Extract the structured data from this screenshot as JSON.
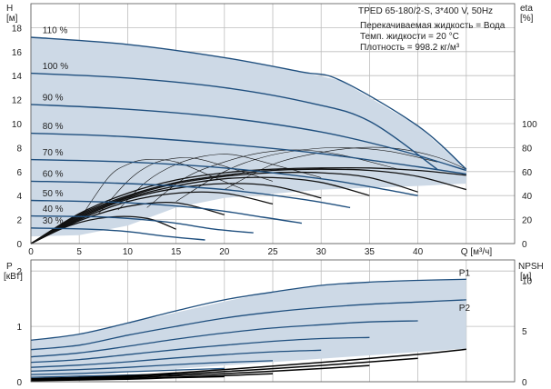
{
  "title": "TPED 65-180/2-S, 3*400 V, 50Hz",
  "info_lines": [
    "Перекачиваемая жидкость = Вода",
    "Темп. жидкости = 20 °C",
    "Плотность = 998.2 кг/м³"
  ],
  "colors": {
    "envelope": "#cdd9e6",
    "curve": "#1f4f7e",
    "grid": "#bdbdbd",
    "efficiency": "#111111",
    "npsh": "#000000"
  },
  "chart_data": [
    {
      "type": "line",
      "panel": "head",
      "ylabel_left": [
        "H",
        "[м]"
      ],
      "ylabel_right": [
        "eta",
        "[%]"
      ],
      "xlabel": "Q [м³/ч]",
      "xlim": [
        0,
        50
      ],
      "xticks": [
        0,
        5,
        10,
        15,
        20,
        25,
        30,
        35,
        40
      ],
      "ylim": [
        0,
        20
      ],
      "yticks": [
        0,
        2,
        4,
        6,
        8,
        10,
        12,
        14,
        16,
        18
      ],
      "eta_ticks": [
        0,
        20,
        40,
        60,
        80,
        100
      ],
      "eta_scale": "eta 0–100 % maps onto H 0–10 m",
      "speed_series": [
        {
          "name": "110 %",
          "x": [
            0,
            10,
            20,
            28,
            32,
            40,
            45
          ],
          "y": [
            17.2,
            16.6,
            15.5,
            14.3,
            13.6,
            9.8,
            6.2
          ]
        },
        {
          "name": "100 %",
          "x": [
            0,
            10,
            20,
            29,
            35,
            42
          ],
          "y": [
            14.2,
            13.8,
            13.0,
            11.7,
            10.2,
            6.2
          ]
        },
        {
          "name": "90 %",
          "x": [
            0,
            10,
            20,
            30,
            38,
            45
          ],
          "y": [
            11.6,
            11.2,
            10.5,
            9.3,
            7.8,
            6.1
          ]
        },
        {
          "name": "80 %",
          "x": [
            0,
            10,
            20,
            30,
            40,
            45
          ],
          "y": [
            9.2,
            8.9,
            8.3,
            7.5,
            6.4,
            5.8
          ]
        },
        {
          "name": "70 %",
          "x": [
            0,
            10,
            20,
            30,
            36,
            40
          ],
          "y": [
            7.0,
            6.8,
            6.3,
            5.4,
            4.6,
            4.0
          ]
        },
        {
          "name": "60 %",
          "x": [
            0,
            10,
            20,
            28,
            33
          ],
          "y": [
            5.2,
            5.0,
            4.5,
            3.7,
            3.0
          ]
        },
        {
          "name": "50 %",
          "x": [
            0,
            10,
            18,
            24,
            28
          ],
          "y": [
            3.6,
            3.4,
            2.9,
            2.2,
            1.7
          ]
        },
        {
          "name": "40 %",
          "x": [
            0,
            8,
            14,
            19,
            23
          ],
          "y": [
            2.3,
            2.2,
            1.8,
            1.2,
            0.9
          ]
        },
        {
          "name": "30 %",
          "x": [
            0,
            6,
            10,
            14,
            18
          ],
          "y": [
            1.3,
            1.2,
            1.0,
            0.6,
            0.3
          ]
        }
      ],
      "envelope": {
        "x": [
          0,
          10,
          20,
          28,
          32,
          40,
          45,
          45,
          40,
          30,
          20,
          15,
          10,
          5,
          0
        ],
        "y": [
          17.2,
          16.6,
          15.5,
          14.3,
          13.6,
          9.8,
          6.2,
          5.0,
          4.8,
          4.5,
          3.8,
          3.0,
          1.5,
          0.7,
          0.6
        ]
      },
      "efficiency_series": [
        {
          "x": [
            0,
            5,
            10,
            15,
            20,
            25,
            30,
            35,
            40,
            45
          ],
          "eta": [
            0,
            25,
            42,
            53,
            59,
            62,
            63,
            63,
            61,
            57
          ]
        },
        {
          "x": [
            0,
            5,
            10,
            15,
            20,
            25,
            30,
            35,
            40,
            45
          ],
          "eta": [
            0,
            24,
            40,
            51,
            57,
            61,
            62,
            61,
            56,
            45
          ]
        },
        {
          "x": [
            0,
            5,
            10,
            15,
            20,
            25,
            30,
            35,
            40
          ],
          "eta": [
            0,
            23,
            39,
            50,
            56,
            59,
            59,
            55,
            43
          ]
        },
        {
          "x": [
            0,
            5,
            10,
            15,
            20,
            25,
            30,
            35
          ],
          "eta": [
            0,
            22,
            38,
            48,
            54,
            55,
            51,
            40
          ]
        },
        {
          "x": [
            0,
            5,
            10,
            15,
            20,
            25,
            30
          ],
          "eta": [
            0,
            21,
            37,
            46,
            50,
            48,
            38
          ]
        },
        {
          "x": [
            0,
            5,
            10,
            15,
            20,
            25
          ],
          "eta": [
            0,
            20,
            35,
            42,
            42,
            33
          ]
        },
        {
          "x": [
            0,
            5,
            10,
            15,
            20
          ],
          "eta": [
            0,
            19,
            31,
            34,
            24
          ]
        },
        {
          "x": [
            0,
            4,
            8,
            12,
            15
          ],
          "eta": [
            0,
            15,
            22,
            21,
            12
          ]
        }
      ],
      "efficiency_hill_curves": [
        {
          "x": [
            5,
            8,
            10,
            12,
            15,
            19,
            22
          ],
          "eta": [
            20,
            55,
            66,
            70,
            68,
            55,
            45
          ]
        },
        {
          "x": [
            7,
            10,
            12,
            14,
            17,
            21,
            25
          ],
          "eta": [
            25,
            52,
            64,
            70,
            71,
            62,
            52
          ]
        },
        {
          "x": [
            9,
            12,
            15,
            18,
            21,
            25,
            30
          ],
          "eta": [
            28,
            52,
            66,
            73,
            74,
            66,
            55
          ]
        },
        {
          "x": [
            12,
            16,
            20,
            24,
            28,
            32,
            38
          ],
          "eta": [
            30,
            55,
            68,
            76,
            78,
            74,
            62
          ]
        },
        {
          "x": [
            15,
            20,
            24,
            28,
            32,
            37,
            42
          ],
          "eta": [
            35,
            60,
            72,
            78,
            80,
            77,
            68
          ]
        },
        {
          "x": [
            20,
            25,
            30,
            34,
            38,
            42,
            45
          ],
          "eta": [
            45,
            66,
            76,
            80,
            79,
            72,
            62
          ]
        }
      ]
    },
    {
      "type": "line",
      "panel": "power_npsh",
      "ylabel_left": [
        "P",
        "[кВт]"
      ],
      "ylabel_right": [
        "NPSH",
        "[м]"
      ],
      "xlim": [
        0,
        50
      ],
      "xticks": [
        0,
        5,
        10,
        15,
        20,
        25,
        30,
        35,
        40
      ],
      "ylim": [
        0,
        2.2
      ],
      "yticks": [
        0,
        1,
        2
      ],
      "npsh_ticks": [
        0,
        5,
        10
      ],
      "labels": [
        "P1",
        "P2"
      ],
      "envelope": {
        "x": [
          0,
          5,
          10,
          15,
          20,
          25,
          30,
          35,
          40,
          45,
          45,
          0
        ],
        "y": [
          0.75,
          0.85,
          1.05,
          1.25,
          1.45,
          1.62,
          1.74,
          1.8,
          1.82,
          1.85,
          0.6,
          0.05
        ]
      },
      "power_series": [
        {
          "name": "P1",
          "x": [
            0,
            5,
            10,
            15,
            20,
            25,
            30,
            35,
            40,
            45
          ],
          "y": [
            0.75,
            0.86,
            1.06,
            1.28,
            1.48,
            1.62,
            1.74,
            1.8,
            1.83,
            1.85
          ]
        },
        {
          "name": "P2",
          "x": [
            0,
            5,
            10,
            15,
            20,
            25,
            30,
            35,
            40,
            45
          ],
          "y": [
            0.58,
            0.66,
            0.84,
            1.0,
            1.15,
            1.26,
            1.34,
            1.4,
            1.44,
            1.48
          ]
        },
        {
          "name": "",
          "x": [
            0,
            5,
            10,
            15,
            20,
            25,
            30,
            35,
            40
          ],
          "y": [
            0.45,
            0.52,
            0.64,
            0.77,
            0.88,
            0.97,
            1.03,
            1.08,
            1.1
          ]
        },
        {
          "name": "",
          "x": [
            0,
            5,
            10,
            15,
            20,
            25,
            30,
            35
          ],
          "y": [
            0.35,
            0.4,
            0.49,
            0.58,
            0.66,
            0.73,
            0.78,
            0.8
          ]
        },
        {
          "name": "",
          "x": [
            0,
            5,
            10,
            15,
            20,
            25,
            30
          ],
          "y": [
            0.26,
            0.3,
            0.36,
            0.43,
            0.49,
            0.54,
            0.57
          ]
        },
        {
          "name": "",
          "x": [
            0,
            5,
            10,
            15,
            20,
            25
          ],
          "y": [
            0.19,
            0.22,
            0.26,
            0.31,
            0.35,
            0.38
          ]
        },
        {
          "name": "",
          "x": [
            0,
            5,
            10,
            15,
            20
          ],
          "y": [
            0.13,
            0.15,
            0.18,
            0.21,
            0.24
          ]
        },
        {
          "name": "",
          "x": [
            0,
            5,
            10,
            15
          ],
          "y": [
            0.08,
            0.1,
            0.12,
            0.14
          ]
        }
      ],
      "npsh_series": [
        {
          "x": [
            0,
            10,
            20,
            30,
            40,
            45
          ],
          "npsh": [
            0.3,
            0.6,
            1.2,
            1.9,
            2.7,
            3.2
          ]
        },
        {
          "x": [
            0,
            10,
            20,
            30,
            40
          ],
          "npsh": [
            0.25,
            0.5,
            1.0,
            1.6,
            2.3
          ]
        },
        {
          "x": [
            0,
            10,
            20,
            30,
            35
          ],
          "npsh": [
            0.2,
            0.4,
            0.8,
            1.3,
            1.6
          ]
        },
        {
          "x": [
            0,
            10,
            20,
            25
          ],
          "npsh": [
            0.15,
            0.3,
            0.6,
            0.8
          ]
        },
        {
          "x": [
            0,
            10,
            15,
            20
          ],
          "npsh": [
            0.1,
            0.25,
            0.4,
            0.5
          ]
        }
      ]
    }
  ]
}
